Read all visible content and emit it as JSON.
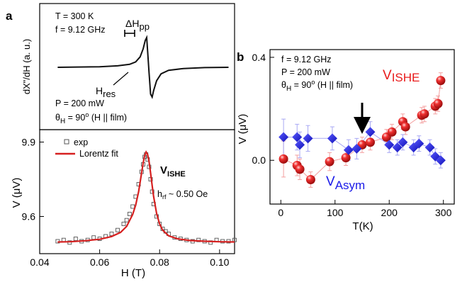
{
  "chart_data": [
    {
      "panel": "a",
      "type": "line",
      "subplot": "top",
      "ylabel": "dX\"/dH (a. u.)",
      "annotations": {
        "temperature": "T = 300 K",
        "frequency": "f = 9.12 GHz",
        "linewidth": "ΔH",
        "linewidth_sub": "pp",
        "resonance": "H",
        "resonance_sub": "res",
        "power": "P = 200 mW",
        "angle_main": "θ",
        "angle_sub": "H",
        "angle_rest": " = 90",
        "angle_deg": "o",
        "angle_tail": " (H || film)"
      },
      "xlim": [
        0.04,
        0.105
      ],
      "series": [
        {
          "color": "#111111",
          "x": [
            0.046,
            0.06,
            0.066,
            0.07,
            0.072,
            0.0735,
            0.0745,
            0.0752,
            0.0757,
            0.076,
            0.0765,
            0.077,
            0.0775,
            0.078,
            0.079,
            0.0805,
            0.083,
            0.088,
            0.095,
            0.103
          ],
          "y": [
            0.0,
            0.02,
            0.05,
            0.1,
            0.18,
            0.35,
            0.62,
            0.9,
            1.0,
            0.55,
            -0.2,
            -0.9,
            -1.0,
            -0.78,
            -0.45,
            -0.22,
            -0.1,
            -0.04,
            -0.01,
            0.0
          ]
        }
      ]
    },
    {
      "panel": "a",
      "type": "line",
      "subplot": "bottom",
      "xlabel": "H (T)",
      "ylabel": "V (μV)",
      "xlim": [
        0.04,
        0.105
      ],
      "ylim": [
        9.45,
        9.95
      ],
      "xticks": [
        "0.04",
        "0.06",
        "0.08",
        "0.10"
      ],
      "yticks": [
        "9.6",
        "9.9"
      ],
      "annotations": {
        "vishe": "V",
        "vishe_sub": "ISHE",
        "hrf": "h",
        "hrf_sub": "rf",
        "hrf_rest": " ~ 0.50 Oe"
      },
      "legend": {
        "placement": "top-left",
        "entries": [
          "exp",
          "Lorentz fit"
        ]
      },
      "series": [
        {
          "name": "exp",
          "style": "open-square",
          "color": "#555555",
          "x": [
            0.046,
            0.048,
            0.05,
            0.052,
            0.054,
            0.056,
            0.058,
            0.06,
            0.062,
            0.064,
            0.066,
            0.068,
            0.069,
            0.07,
            0.071,
            0.072,
            0.073,
            0.074,
            0.0745,
            0.075,
            0.0755,
            0.076,
            0.0765,
            0.077,
            0.0775,
            0.078,
            0.079,
            0.08,
            0.081,
            0.082,
            0.083,
            0.085,
            0.087,
            0.089,
            0.091,
            0.093,
            0.095,
            0.097,
            0.099,
            0.101,
            0.103,
            0.105
          ],
          "y": [
            9.5,
            9.505,
            9.495,
            9.51,
            9.5,
            9.505,
            9.515,
            9.51,
            9.52,
            9.53,
            9.545,
            9.57,
            9.585,
            9.61,
            9.64,
            9.68,
            9.73,
            9.78,
            9.81,
            9.84,
            9.85,
            9.83,
            9.8,
            9.75,
            9.7,
            9.65,
            9.6,
            9.57,
            9.55,
            9.54,
            9.53,
            9.515,
            9.51,
            9.505,
            9.5,
            9.505,
            9.5,
            9.495,
            9.505,
            9.5,
            9.5,
            9.505
          ]
        },
        {
          "name": "Lorentz fit",
          "style": "line",
          "color": "#d62020",
          "x": [
            0.046,
            0.05,
            0.055,
            0.06,
            0.064,
            0.067,
            0.069,
            0.071,
            0.072,
            0.073,
            0.074,
            0.0745,
            0.075,
            0.0755,
            0.076,
            0.0765,
            0.077,
            0.0775,
            0.078,
            0.079,
            0.08,
            0.081,
            0.083,
            0.086,
            0.09,
            0.095,
            0.1,
            0.105
          ],
          "y": [
            9.497,
            9.498,
            9.502,
            9.508,
            9.519,
            9.536,
            9.56,
            9.608,
            9.645,
            9.7,
            9.775,
            9.815,
            9.845,
            9.86,
            9.85,
            9.82,
            9.775,
            9.725,
            9.68,
            9.612,
            9.57,
            9.545,
            9.522,
            9.51,
            9.503,
            9.5,
            9.498,
            9.497
          ]
        }
      ]
    },
    {
      "panel": "b",
      "type": "scatter",
      "xlabel": "T(K)",
      "ylabel": "V (μV)",
      "xlim": [
        -20,
        320
      ],
      "ylim": [
        -0.17,
        0.43
      ],
      "xticks": [
        "0",
        "100",
        "200",
        "300"
      ],
      "yticks": [
        "0.0",
        "0.4"
      ],
      "annotations": {
        "frequency": "f = 9.12 GHz",
        "power": "P = 200 mW",
        "angle_main": "θ",
        "angle_sub": "H",
        "angle_rest": " = 90",
        "angle_deg": "o",
        "angle_tail": " (H || film)",
        "vishe": "V",
        "vishe_sub": "ISHE",
        "vasym": "V",
        "vasym_sub": "Asym"
      },
      "arrow_at_T": 150,
      "series": [
        {
          "name": "V_ISHE",
          "marker": "sphere",
          "color": "#e81a1a",
          "x": [
            5,
            30,
            35,
            55,
            90,
            120,
            150,
            165,
            195,
            205,
            225,
            230,
            260,
            265,
            285,
            290,
            295
          ],
          "y": [
            0.005,
            -0.02,
            -0.035,
            -0.075,
            -0.005,
            0.01,
            0.06,
            0.07,
            0.09,
            0.11,
            0.15,
            0.13,
            0.175,
            0.18,
            0.21,
            0.22,
            0.31
          ],
          "err": [
            0.07,
            0.04,
            0.04,
            0.03,
            0.035,
            0.03,
            0.03,
            0.03,
            0.03,
            0.03,
            0.03,
            0.03,
            0.03,
            0.03,
            0.03,
            0.03,
            0.03
          ]
        },
        {
          "name": "V_Asym",
          "marker": "diamond",
          "color": "#1a1ae8",
          "x": [
            5,
            30,
            35,
            50,
            95,
            125,
            140,
            165,
            200,
            215,
            225,
            245,
            255,
            275,
            285,
            295
          ],
          "y": [
            0.09,
            0.09,
            0.06,
            0.085,
            0.085,
            0.04,
            0.045,
            0.11,
            0.06,
            0.05,
            0.07,
            0.05,
            0.065,
            0.05,
            0.015,
            0.0
          ],
          "err": [
            0.07,
            0.05,
            0.05,
            0.05,
            0.045,
            0.04,
            0.04,
            0.04,
            0.03,
            0.03,
            0.03,
            0.03,
            0.03,
            0.03,
            0.03,
            0.03
          ]
        }
      ]
    }
  ],
  "panel_labels": {
    "a": "a",
    "b": "b"
  }
}
